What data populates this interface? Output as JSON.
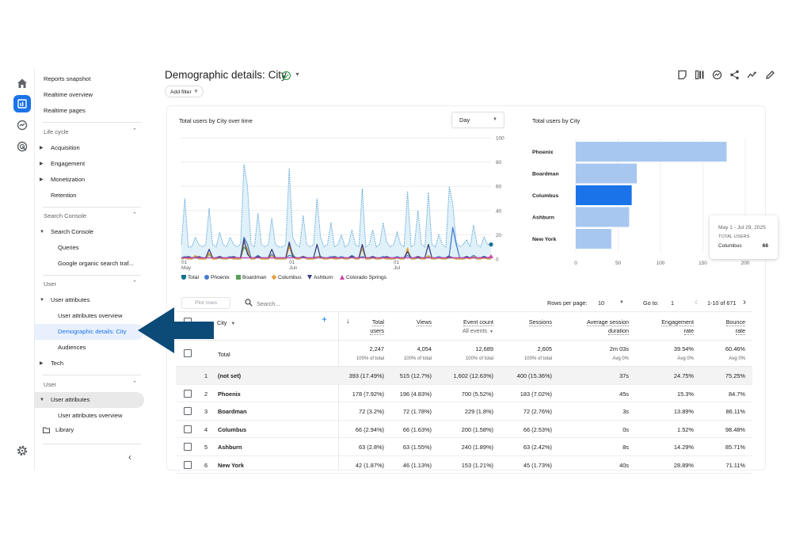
{
  "header": {
    "title": "Demographic details: City",
    "add_filter_label": "Add filter"
  },
  "rail": {
    "icons": [
      "home-icon",
      "reports-icon",
      "explore-icon",
      "advertising-icon"
    ],
    "settings_icon": "gear-icon"
  },
  "toolbar_icons": [
    "compare-icon",
    "customize-report-icon",
    "insights-icon",
    "share-icon",
    "trend-icon",
    "edit-icon"
  ],
  "sidebar": {
    "top_items": [
      "Reports snapshot",
      "Realtime overview",
      "Realtime pages"
    ],
    "section_lifecycle": "Life cycle",
    "lifecycle_items": [
      "Acquisition",
      "Engagement",
      "Monetization",
      "Retention"
    ],
    "section_search_console": "Search Console",
    "search_console_group": "Search Console",
    "search_console_items": [
      "Queries",
      "Google organic search traf..."
    ],
    "section_user": "User",
    "user_attributes_group": "User attributes",
    "user_attributes_items": [
      "User attributes overview",
      "Demographic details: City"
    ],
    "audiences": "Audiences",
    "tech": "Tech",
    "section_user2": "User",
    "user_attributes_group2": "User attributes",
    "user_attributes_overview2": "User attributes overview",
    "library": "Library"
  },
  "line_chart_title": "Total users by City over time",
  "bar_chart_title": "Total users by City",
  "day_select": "Day",
  "legend": {
    "items": [
      "Total",
      "Phoenix",
      "Boardman",
      "Columbus",
      "Ashburn",
      "Colorado Springs"
    ]
  },
  "tooltip": {
    "date": "May 1 - Jul 29, 2025",
    "metric": "TOTAL USERS",
    "city": "Columbus",
    "value": "66"
  },
  "chart_data": [
    {
      "type": "line",
      "title": "Total users by City over time",
      "ylim": [
        0,
        100
      ],
      "y_ticks": [
        "0",
        "20",
        "40",
        "60",
        "80",
        "100"
      ],
      "x_ticks": [
        {
          "day": "01",
          "month": "May"
        },
        {
          "day": "01",
          "month": "Jun"
        },
        {
          "day": "01",
          "month": "Jul"
        }
      ],
      "series": [
        {
          "name": "Total",
          "values": [
            12,
            50,
            10,
            10,
            18,
            12,
            10,
            12,
            42,
            12,
            10,
            22,
            12,
            10,
            18,
            12,
            10,
            12,
            78,
            60,
            12,
            10,
            38,
            12,
            10,
            12,
            34,
            12,
            10,
            10,
            12,
            75,
            18,
            12,
            10,
            36,
            12,
            10,
            12,
            50,
            18,
            10,
            12,
            30,
            10,
            12,
            20,
            10,
            12,
            24,
            12,
            10,
            58,
            10,
            12,
            24,
            10,
            12,
            30,
            14,
            10,
            12,
            22,
            12,
            10,
            56,
            10,
            12,
            40,
            12,
            10,
            55,
            12,
            10,
            20,
            12,
            10,
            60,
            45,
            14,
            10,
            12,
            16,
            10,
            28,
            12,
            10,
            18,
            12,
            12
          ]
        },
        {
          "name": "Phoenix",
          "values": [
            1,
            2,
            1,
            1,
            2,
            1,
            1,
            1,
            4,
            1,
            1,
            2,
            1,
            1,
            2,
            1,
            1,
            1,
            18,
            12,
            1,
            1,
            3,
            1,
            1,
            1,
            4,
            1,
            1,
            1,
            1,
            3,
            2,
            1,
            1,
            2,
            1,
            1,
            1,
            2,
            2,
            1,
            1,
            2,
            1,
            1,
            2,
            1,
            1,
            3,
            1,
            1,
            2,
            1,
            1,
            2,
            1,
            1,
            2,
            1,
            1,
            1,
            2,
            1,
            1,
            3,
            1,
            1,
            2,
            1,
            1,
            2,
            1,
            1,
            2,
            1,
            1,
            3,
            26,
            12,
            1,
            1,
            2,
            1,
            3,
            1,
            1,
            2,
            1,
            2
          ]
        },
        {
          "name": "Boardman",
          "values": [
            0,
            1,
            0,
            0,
            2,
            0,
            0,
            0,
            4,
            0,
            0,
            1,
            0,
            0,
            1,
            0,
            0,
            0,
            10,
            6,
            0,
            0,
            2,
            0,
            0,
            0,
            3,
            0,
            0,
            0,
            0,
            12,
            4,
            0,
            0,
            2,
            0,
            0,
            0,
            1,
            2,
            0,
            0,
            1,
            0,
            0,
            1,
            0,
            0,
            2,
            0,
            0,
            9,
            0,
            0,
            1,
            0,
            0,
            1,
            0,
            0,
            0,
            1,
            0,
            0,
            8,
            0,
            0,
            1,
            0,
            0,
            2,
            0,
            0,
            1,
            0,
            0,
            1,
            1,
            0,
            0,
            0,
            1,
            0,
            2,
            0,
            0,
            1,
            0,
            0
          ]
        },
        {
          "name": "Columbus",
          "values": [
            0,
            1,
            0,
            0,
            3,
            0,
            0,
            0,
            5,
            0,
            0,
            2,
            0,
            0,
            1,
            0,
            0,
            0,
            14,
            8,
            0,
            0,
            2,
            0,
            0,
            0,
            3,
            0,
            0,
            0,
            0,
            10,
            2,
            0,
            0,
            2,
            0,
            0,
            0,
            2,
            1,
            0,
            0,
            1,
            0,
            0,
            1,
            0,
            0,
            2,
            0,
            0,
            10,
            0,
            0,
            2,
            0,
            0,
            1,
            0,
            0,
            0,
            1,
            0,
            0,
            9,
            0,
            0,
            2,
            0,
            0,
            3,
            0,
            0,
            1,
            0,
            0,
            2,
            1,
            0,
            0,
            0,
            1,
            0,
            2,
            0,
            0,
            1,
            0,
            0
          ]
        },
        {
          "name": "Ashburn",
          "values": [
            1,
            1,
            2,
            1,
            1,
            2,
            1,
            1,
            8,
            1,
            1,
            2,
            1,
            1,
            1,
            2,
            1,
            1,
            16,
            4,
            1,
            1,
            2,
            1,
            1,
            1,
            8,
            1,
            1,
            1,
            1,
            14,
            2,
            1,
            1,
            2,
            1,
            1,
            1,
            12,
            1,
            1,
            1,
            1,
            2,
            1,
            1,
            1,
            1,
            2,
            1,
            1,
            12,
            1,
            1,
            2,
            1,
            1,
            1,
            2,
            1,
            1,
            1,
            1,
            1,
            6,
            1,
            1,
            2,
            1,
            1,
            12,
            1,
            1,
            1,
            1,
            1,
            2,
            1,
            1,
            1,
            1,
            2,
            1,
            1,
            1,
            1,
            2,
            1,
            1
          ]
        },
        {
          "name": "Colorado Springs",
          "values": [
            1,
            1,
            1,
            1,
            1,
            1,
            1,
            1,
            1,
            1,
            1,
            1,
            1,
            1,
            1,
            1,
            1,
            1,
            1,
            1,
            1,
            1,
            1,
            1,
            1,
            1,
            1,
            1,
            1,
            1,
            1,
            1,
            1,
            1,
            1,
            1,
            1,
            1,
            1,
            1,
            1,
            1,
            1,
            1,
            1,
            1,
            1,
            1,
            1,
            1,
            1,
            1,
            1,
            1,
            1,
            1,
            1,
            1,
            1,
            1,
            1,
            1,
            1,
            1,
            1,
            1,
            1,
            1,
            1,
            1,
            1,
            1,
            1,
            1,
            1,
            1,
            1,
            1,
            1,
            1,
            1,
            1,
            1,
            1,
            1,
            1,
            1,
            1,
            1,
            2
          ]
        }
      ],
      "colors": {
        "Total": "#4a9bd4",
        "Phoenix": "#4a7bd0",
        "Boardman": "#5aa05a",
        "Columbus": "#e8a13a",
        "Ashburn": "#3a4080",
        "Colorado Springs": "#d040a8"
      }
    },
    {
      "type": "bar",
      "orientation": "horizontal",
      "title": "Total users by City",
      "categories": [
        "Phoenix",
        "Boardman",
        "Columbus",
        "Ashburn",
        "New York"
      ],
      "values": [
        178,
        72,
        66,
        63,
        42
      ],
      "xlim": [
        0,
        200
      ],
      "x_ticks": [
        "0",
        "50",
        "100",
        "150",
        "200"
      ],
      "highlighted": "Columbus",
      "colors": {
        "bar": "#a8c7f0",
        "highlight": "#1a73e8"
      }
    }
  ],
  "table_toolbar": {
    "plot_rows": "Plot rows",
    "search_placeholder": "Search...",
    "rows_per_page_label": "Rows per page:",
    "rows_per_page_value": "10",
    "goto_label": "Go to:",
    "goto_value": "1",
    "range": "1-10 of 671"
  },
  "table": {
    "dimension": "City",
    "columns": [
      {
        "line1": "Total",
        "line2": "users"
      },
      {
        "line1": "Views",
        "line2": ""
      },
      {
        "line1": "Event count",
        "line2": "All events"
      },
      {
        "line1": "Sessions",
        "line2": ""
      },
      {
        "line1": "Average session",
        "line2": "duration"
      },
      {
        "line1": "Engagement",
        "line2": "rate"
      },
      {
        "line1": "Bounce",
        "line2": "rate"
      }
    ],
    "total_label": "Total",
    "totals": [
      "2,247",
      "4,054",
      "12,689",
      "2,605",
      "2m 03s",
      "39.54%",
      "60.46%"
    ],
    "totals_sub": [
      "100% of total",
      "100% of total",
      "100% of total",
      "100% of total",
      "Avg 0%",
      "Avg 0%",
      "Avg 0%"
    ],
    "rows": [
      {
        "n": "1",
        "city": "(not set)",
        "v": [
          "393 (17.49%)",
          "515 (12.7%)",
          "1,602 (12.63%)",
          "400 (15.36%)",
          "37s",
          "24.75%",
          "75.25%"
        ]
      },
      {
        "n": "2",
        "city": "Phoenix",
        "v": [
          "178 (7.92%)",
          "196 (4.83%)",
          "700 (5.52%)",
          "183 (7.02%)",
          "45s",
          "15.3%",
          "84.7%"
        ]
      },
      {
        "n": "3",
        "city": "Boardman",
        "v": [
          "72 (3.2%)",
          "72 (1.78%)",
          "229 (1.8%)",
          "72 (2.76%)",
          "3s",
          "13.89%",
          "86.11%"
        ]
      },
      {
        "n": "4",
        "city": "Columbus",
        "v": [
          "66 (2.94%)",
          "66 (1.63%)",
          "200 (1.58%)",
          "66 (2.53%)",
          "0s",
          "1.52%",
          "98.48%"
        ]
      },
      {
        "n": "5",
        "city": "Ashburn",
        "v": [
          "63 (2.8%)",
          "63 (1.55%)",
          "240 (1.89%)",
          "63 (2.42%)",
          "8s",
          "14.29%",
          "85.71%"
        ]
      },
      {
        "n": "6",
        "city": "New York",
        "v": [
          "42 (1.87%)",
          "46 (1.13%)",
          "153 (1.21%)",
          "45 (1.73%)",
          "40s",
          "28.89%",
          "71.11%"
        ]
      }
    ]
  }
}
